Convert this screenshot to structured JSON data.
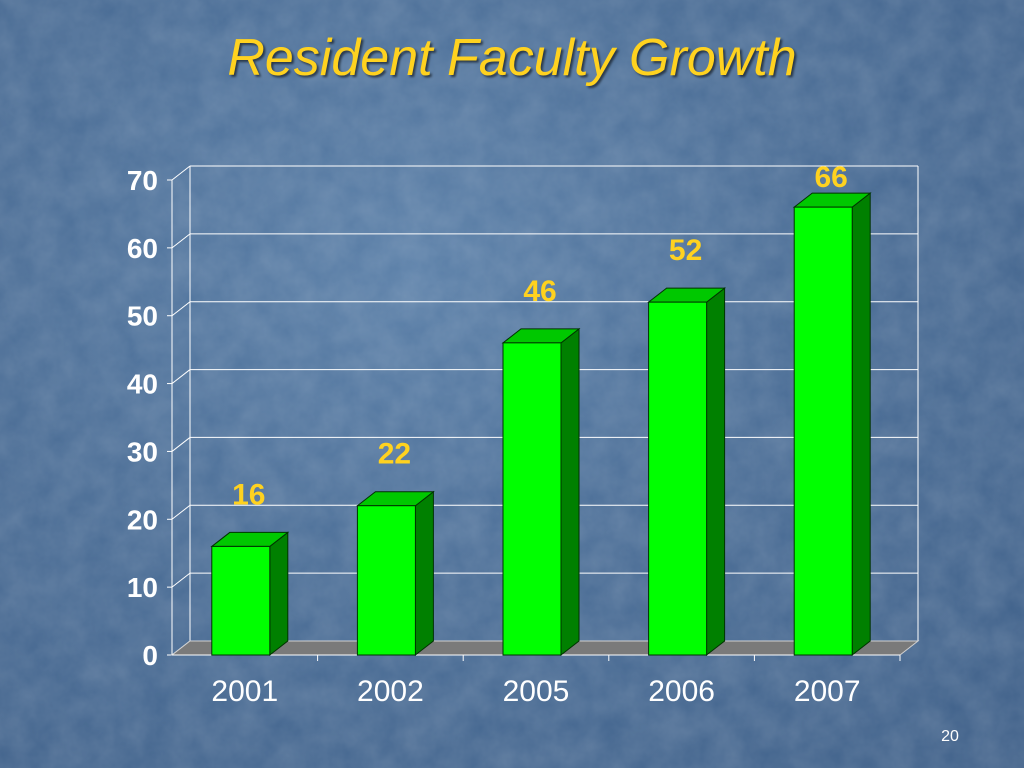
{
  "slide": {
    "title": "Resident Faculty Growth",
    "page_number": "20"
  },
  "colors": {
    "title": "#ffd21f",
    "bar_front": "#00ff00",
    "bar_side": "#008000",
    "bar_top": "#00c800",
    "data_label": "#ffd21f",
    "floor": "#7a7a7a",
    "grid": "#ffffff",
    "text": "#ffffff"
  },
  "chart_data": {
    "type": "bar",
    "style": "3d",
    "categories": [
      "2001",
      "2002",
      "2005",
      "2006",
      "2007"
    ],
    "values": [
      16,
      22,
      46,
      52,
      66
    ],
    "ylim": [
      0,
      70
    ],
    "yticks": [
      0,
      10,
      20,
      30,
      40,
      50,
      60,
      70
    ],
    "grid": true,
    "legend": "none",
    "data_labels": [
      "16",
      "22",
      "46",
      "52",
      "66"
    ]
  }
}
